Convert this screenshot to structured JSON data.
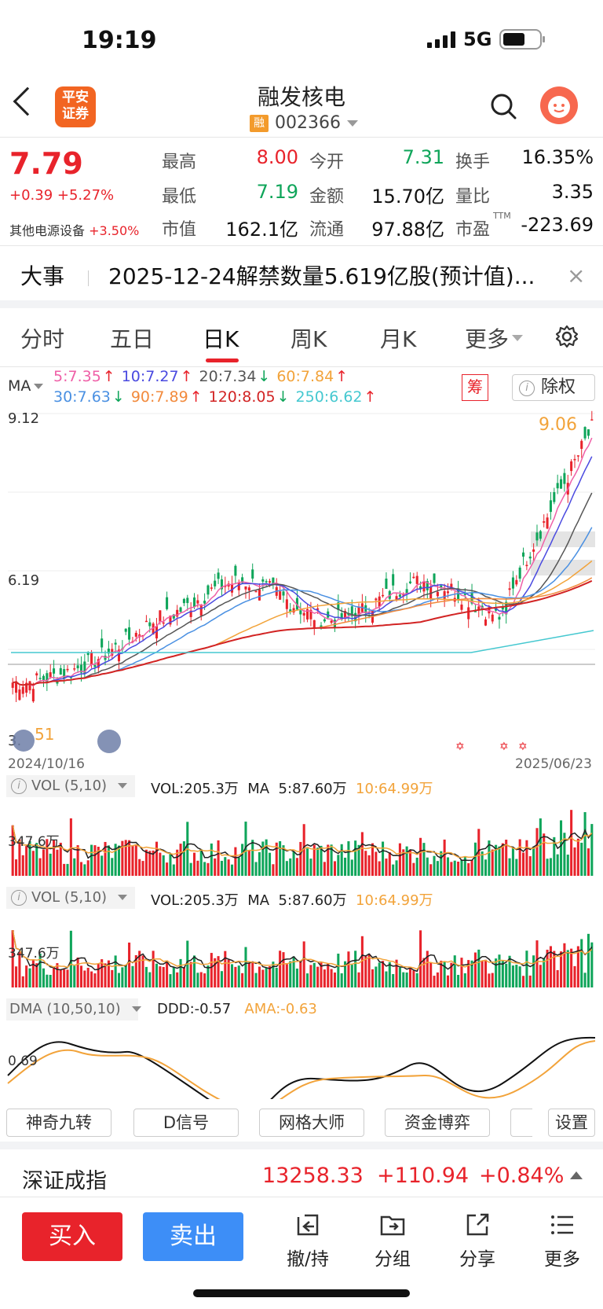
{
  "status": {
    "time": "19:19",
    "network": "5G"
  },
  "header": {
    "broker_logo": "平安证券",
    "stock_name": "融发核电",
    "margin_badge": "融",
    "stock_code": "002366"
  },
  "quote": {
    "price": "7.79",
    "change": "+0.39 +5.27%",
    "sector": "其他电源设备",
    "sector_change": "+3.50%",
    "fields": [
      {
        "label": "最高",
        "value": "8.00",
        "tone": "red"
      },
      {
        "label": "今开",
        "value": "7.31",
        "tone": "green"
      },
      {
        "label": "换手",
        "value": "16.35%",
        "tone": "dark"
      },
      {
        "label": "最低",
        "value": "7.19",
        "tone": "green"
      },
      {
        "label": "金额",
        "value": "15.70亿",
        "tone": "dark"
      },
      {
        "label": "量比",
        "value": "3.35",
        "tone": "dark"
      },
      {
        "label": "市值",
        "value": "162.1亿",
        "tone": "dark"
      },
      {
        "label": "流通",
        "value": "97.88亿",
        "tone": "dark"
      },
      {
        "label": "市盈",
        "value": "-223.69",
        "tone": "dark",
        "sup": "TTM"
      }
    ]
  },
  "news": {
    "title": "大事",
    "text": "2025-12-24解禁数量5.619亿股(预计值)...",
    "close": "×"
  },
  "tabs": [
    "分时",
    "五日",
    "日K",
    "周K",
    "月K",
    "更多"
  ],
  "active_tab": "日K",
  "ma_legend": {
    "label": "MA",
    "items": [
      {
        "text": "5:7.35",
        "arrow": "↑",
        "color": "#ef5fa7"
      },
      {
        "text": "10:7.27",
        "arrow": "↑",
        "color": "#4a4ae0"
      },
      {
        "text": "20:7.34",
        "arrow": "↓",
        "color": "#555555"
      },
      {
        "text": "60:7.84",
        "arrow": "↑",
        "color": "#f2a33a"
      },
      {
        "text": "30:7.63",
        "arrow": "↓",
        "color": "#4a90e2"
      },
      {
        "text": "90:7.89",
        "arrow": "↑",
        "color": "#f28a3c"
      },
      {
        "text": "120:8.05",
        "arrow": "↓",
        "color": "#d22424"
      },
      {
        "text": "250:6.62",
        "arrow": "↑",
        "color": "#45c8d0"
      }
    ],
    "chou": "筹",
    "chuquan": "除权",
    "info": "i"
  },
  "kline": {
    "y_top_label": "9.12",
    "y_mid_label": "6.19",
    "y_bottom_label": "3.",
    "low_label": "51",
    "high_label": "9.06",
    "date_start": "2024/10/16",
    "date_end": "2025/06/23"
  },
  "vol1": {
    "tag": "VOL (5,10)",
    "vol": "VOL:205.3万",
    "ma": "MA",
    "ma5": "5:87.60万",
    "ma10": "10:64.99万",
    "ylabel": "347.6万"
  },
  "vol2": {
    "tag": "VOL (5,10)",
    "vol": "VOL:205.3万",
    "ma": "MA",
    "ma5": "5:87.60万",
    "ma10": "10:64.99万",
    "ylabel": "347.6万"
  },
  "dma": {
    "tag": "DMA (10,50,10)",
    "ddd": "DDD:-0.57",
    "ama": "AMA:-0.63",
    "ylabel": "0.69"
  },
  "tools": [
    "神奇九转",
    "D信号",
    "网格大师",
    "资金博弈",
    "",
    "设置"
  ],
  "index_bar": {
    "name": "深证成指",
    "value": "13258.33",
    "change": "+110.94",
    "pct": "+0.84%"
  },
  "bottom": {
    "buy": "买入",
    "sell": "卖出",
    "actions": [
      "撤/持",
      "分组",
      "分享",
      "更多"
    ]
  },
  "colors": {
    "up": "#e8232b",
    "down": "#0fa55a",
    "accent_blue": "#3d8ef7"
  }
}
